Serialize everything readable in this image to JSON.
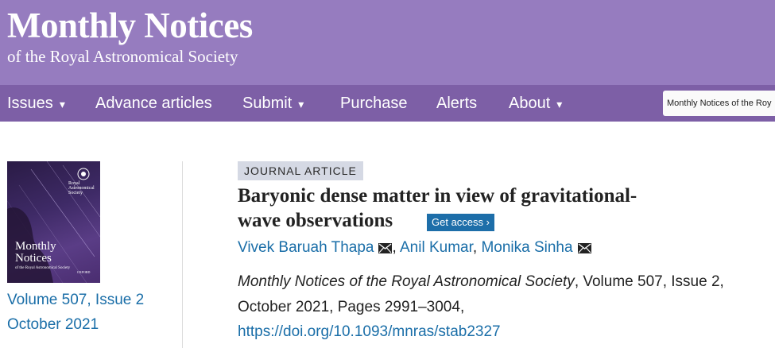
{
  "header": {
    "title": "Monthly Notices",
    "subtitle": "of the Royal Astronomical Society",
    "background": "#967cbf"
  },
  "nav": {
    "background": "#7d5fa6",
    "items": [
      {
        "label": "Issues",
        "caret": "▾"
      },
      {
        "label": "Advance articles",
        "caret": ""
      },
      {
        "label": "Submit",
        "caret": "▾"
      },
      {
        "label": "Purchase",
        "caret": ""
      },
      {
        "label": "Alerts",
        "caret": ""
      },
      {
        "label": "About",
        "caret": "▾"
      }
    ],
    "search_scope": "Monthly Notices of the Roy"
  },
  "cover": {
    "title": "Monthly\nNotices",
    "subtitle": "of the Royal Astronomical Society",
    "society": "Royal\nAstronomical\nSociety",
    "publisher": "OXFORD"
  },
  "issue": {
    "volume_issue": "Volume 507, Issue 2",
    "date": "October 2021"
  },
  "article": {
    "type_label": "JOURNAL ARTICLE",
    "title_line1": "Baryonic dense matter in view of gravitational-",
    "title_line2": "wave observations",
    "access_label": "Get access ›",
    "authors": [
      {
        "name": "Vivek Baruah Thapa",
        "email_icon": "envelope-icon"
      },
      {
        "name": "Anil Kumar"
      },
      {
        "name": "Monika Sinha",
        "email_icon": "envelope-icon"
      }
    ],
    "author_separator": ", ",
    "journal": "Monthly Notices of the Royal Astronomical Society",
    "citation_line1_rest": ", Volume 507, Issue 2,",
    "citation_line2": "October 2021, Pages 2991–3004,",
    "doi": "https://doi.org/10.1093/mnras/stab2327"
  },
  "colors": {
    "link": "#1a6ea8",
    "button": "#1d6ea9",
    "badge": "#d5d9e4"
  }
}
